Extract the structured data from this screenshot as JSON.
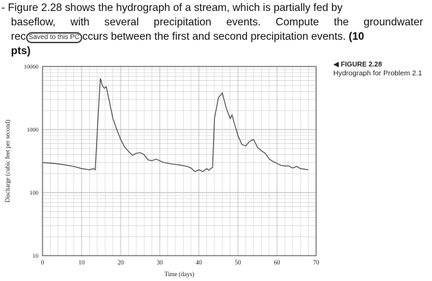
{
  "question": {
    "line1": "- Figure 2.28 shows the hydrograph of a stream, which is partially fed by",
    "line2": "baseflow, with several precipitation events. Compute the groundwater",
    "line3_prefix": "rec",
    "badge": "Saved to this PC",
    "line3_suffix": "ccurs between the first and second precipitation events.",
    "points": "(10",
    "line4": "pts)"
  },
  "figure": {
    "label": "FIGURE 2.28",
    "title": "Hydrograph for Problem 2.1",
    "arrow": "◀"
  },
  "chart_data": {
    "type": "line",
    "xlabel": "Time (days)",
    "ylabel": "Discharge (cubic feet per second)",
    "xlim": [
      0,
      70
    ],
    "ylim": [
      10,
      10000
    ],
    "yscale": "log",
    "grid": true,
    "x_ticks": [
      "0",
      "10",
      "20",
      "30",
      "40",
      "50",
      "60",
      "70"
    ],
    "y_ticks": [
      "10",
      "100",
      "1000",
      "10000"
    ],
    "series": [
      {
        "color": "#444444",
        "x": [
          0,
          3,
          5,
          8,
          10,
          12,
          13,
          13.5,
          14.3,
          14.8,
          15.3,
          15.8,
          16.3,
          17,
          18,
          19,
          20,
          21,
          22,
          23,
          24,
          25,
          26,
          27,
          28,
          29,
          31,
          33,
          35,
          37,
          38,
          39,
          40,
          41,
          42,
          42.5,
          43,
          43.5,
          44,
          45,
          46,
          47,
          48,
          48.5,
          49,
          50,
          51,
          52,
          53,
          54,
          55,
          56,
          57,
          58,
          59,
          60,
          61,
          62,
          63,
          64,
          65,
          66,
          67,
          68
        ],
        "y": [
          300,
          290,
          280,
          260,
          240,
          230,
          240,
          230,
          2000,
          6500,
          5000,
          4500,
          4800,
          3000,
          1500,
          1000,
          700,
          530,
          450,
          390,
          420,
          430,
          400,
          330,
          320,
          340,
          300,
          285,
          275,
          260,
          245,
          215,
          230,
          215,
          240,
          225,
          240,
          250,
          1500,
          3200,
          3800,
          2200,
          1500,
          1700,
          1300,
          800,
          580,
          550,
          650,
          700,
          520,
          460,
          420,
          340,
          310,
          290,
          270,
          265,
          265,
          245,
          260,
          240,
          235,
          230
        ]
      }
    ]
  }
}
